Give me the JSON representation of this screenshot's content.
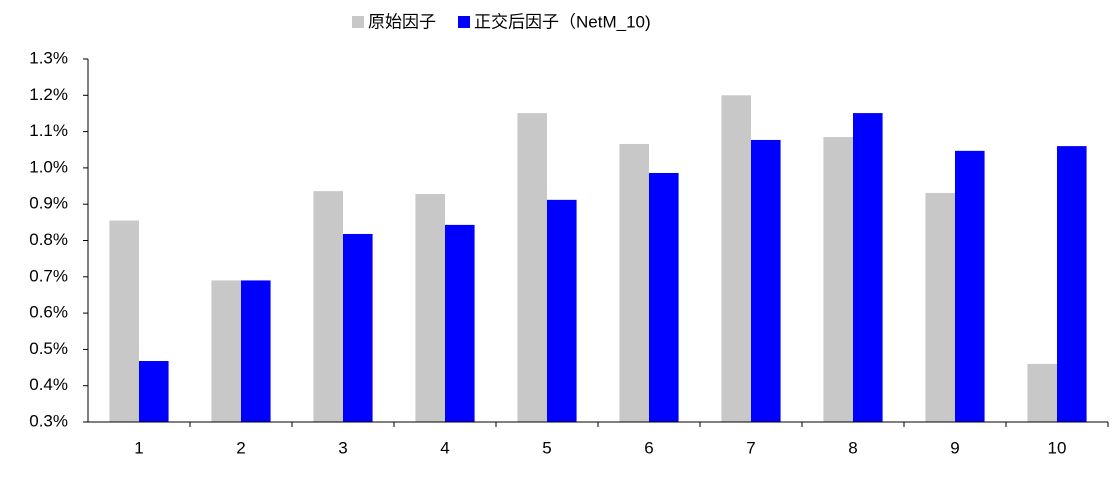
{
  "chart_data": {
    "type": "bar",
    "categories": [
      "1",
      "2",
      "3",
      "4",
      "5",
      "6",
      "7",
      "8",
      "9",
      "10"
    ],
    "series": [
      {
        "name": "原始因子",
        "color": "#c8c8c8",
        "values": [
          0.855,
          0.69,
          0.936,
          0.928,
          1.151,
          1.066,
          1.2,
          1.085,
          0.931,
          0.46
        ]
      },
      {
        "name": "正交后因子（NetM_10)",
        "color": "#0000ff",
        "values": [
          0.468,
          0.69,
          0.818,
          0.843,
          0.912,
          0.986,
          1.077,
          1.151,
          1.047,
          1.06
        ]
      }
    ],
    "ylim": [
      0.3,
      1.3
    ],
    "yticks": [
      {
        "value": 0.3,
        "label": "0.3%"
      },
      {
        "value": 0.4,
        "label": "0.4%"
      },
      {
        "value": 0.5,
        "label": "0.5%"
      },
      {
        "value": 0.6,
        "label": "0.6%"
      },
      {
        "value": 0.7,
        "label": "0.7%"
      },
      {
        "value": 0.8,
        "label": "0.8%"
      },
      {
        "value": 0.9,
        "label": "0.9%"
      },
      {
        "value": 1.0,
        "label": "1.0%"
      },
      {
        "value": 1.1,
        "label": "1.1%"
      },
      {
        "value": 1.2,
        "label": "1.2%"
      },
      {
        "value": 1.3,
        "label": "1.3%"
      }
    ],
    "grid": false,
    "legend": "top"
  }
}
